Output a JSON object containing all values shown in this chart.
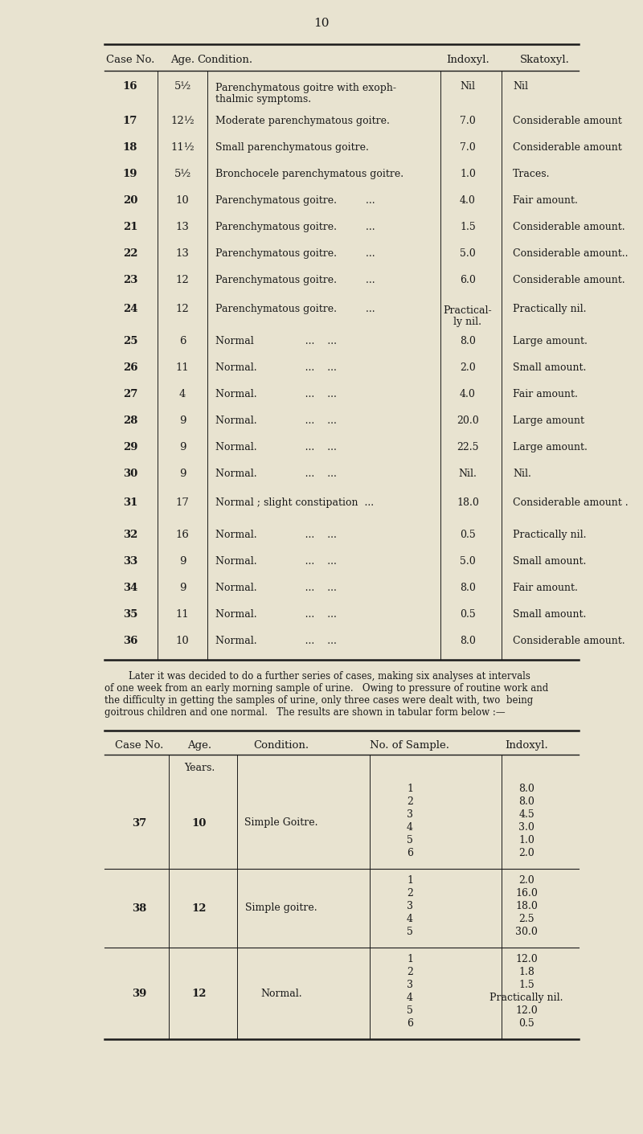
{
  "page_number": "10",
  "bg_color": "#e8e3d0",
  "text_color": "#1a1a1a",
  "table1_headers": [
    "Case No.",
    "Age.",
    "Condition.",
    "Indoxyl.",
    "Skatoxyl."
  ],
  "table1_rows": [
    [
      "16",
      "5½",
      "Parenchymatous goitre with exoph-\nthalmic symptoms.",
      "Nil",
      "Nil"
    ],
    [
      "17",
      "12½",
      "Moderate parenchymatous goitre.",
      "7.0",
      "Considerable amount"
    ],
    [
      "18",
      "11½",
      "Small parenchymatous goitre.",
      "7.0",
      "Considerable amount"
    ],
    [
      "19",
      "5½",
      "Bronchocele parenchymatous goitre.",
      "1.0",
      "Traces."
    ],
    [
      "20",
      "10",
      "Parenchymatous goitre.         ...",
      "4.0",
      "Fair amount."
    ],
    [
      "21",
      "13",
      "Parenchymatous goitre.         ...",
      "1.5",
      "Considerable amount."
    ],
    [
      "22",
      "13",
      "Parenchymatous goitre.         ...",
      "5.0",
      "Considerable amount.."
    ],
    [
      "23",
      "12",
      "Parenchymatous goitre.         ...",
      "6.0",
      "Considerable amount."
    ],
    [
      "24",
      "12",
      "Parenchymatous goitre.         ...",
      "Practical-\nly nil.",
      "Practically nil."
    ],
    [
      "25",
      "6",
      "Normal                ...    ...",
      "8.0",
      "Large amount."
    ],
    [
      "26",
      "11",
      "Normal.               ...    ...",
      "2.0",
      "Small amount."
    ],
    [
      "27",
      "4",
      "Normal.               ...    ...",
      "4.0",
      "Fair amount."
    ],
    [
      "28",
      "9",
      "Normal.               ...    ...",
      "20.0",
      "Large amount"
    ],
    [
      "29",
      "9",
      "Normal.               ...    ...",
      "22.5",
      "Large amount."
    ],
    [
      "30",
      "9",
      "Normal.               ...    ...",
      "Nil.",
      "Nil."
    ],
    [
      "31",
      "17",
      "Normal ; slight constipation  ...",
      "18.0",
      "Considerable amount ."
    ],
    [
      "32",
      "16",
      "Normal.               ...    ...",
      "0.5",
      "Practically nil."
    ],
    [
      "33",
      "9",
      "Normal.               ...    ...",
      "5.0",
      "Small amount."
    ],
    [
      "34",
      "9",
      "Normal.               ...    ...",
      "8.0",
      "Fair amount."
    ],
    [
      "35",
      "11",
      "Normal.               ...    ...",
      "0.5",
      "Small amount."
    ],
    [
      "36",
      "10",
      "Normal.               ...    ...",
      "8.0",
      "Considerable amount."
    ]
  ],
  "paragraph_lines": [
    "        Later it was decided to do a further series of cases, making six analyses at intervals",
    "of one week from an early morning sample of urine.   Owing to pressure of routine work and",
    "the difficulty in getting the samples of urine, only three cases were dealt with, two  being",
    "goitrous children and one normal.   The results are shown in tabular form below :—"
  ],
  "table2_headers": [
    "Case No.",
    "Age.",
    "Condition.",
    "No. of Sample.",
    "Indoxyl."
  ],
  "table2_age_header": "Years.",
  "table2_rows": [
    [
      "37",
      "10",
      "Simple Goitre.",
      [
        "1",
        "2",
        "3",
        "4",
        "5",
        "6"
      ],
      [
        "8.0",
        "8.0",
        "4.5",
        "3.0",
        "1.0",
        "2.0"
      ]
    ],
    [
      "38",
      "12",
      "Simple goitre.",
      [
        "1",
        "2",
        "3",
        "4",
        "5"
      ],
      [
        "2.0",
        "16.0",
        "18.0",
        "2.5",
        "30.0"
      ]
    ],
    [
      "39",
      "12",
      "Normal.",
      [
        "1",
        "2",
        "3",
        "4",
        "5",
        "6"
      ],
      [
        "12.0",
        "1.8",
        "1.5",
        "Practically nil.",
        "12.0",
        "0.5"
      ]
    ]
  ]
}
